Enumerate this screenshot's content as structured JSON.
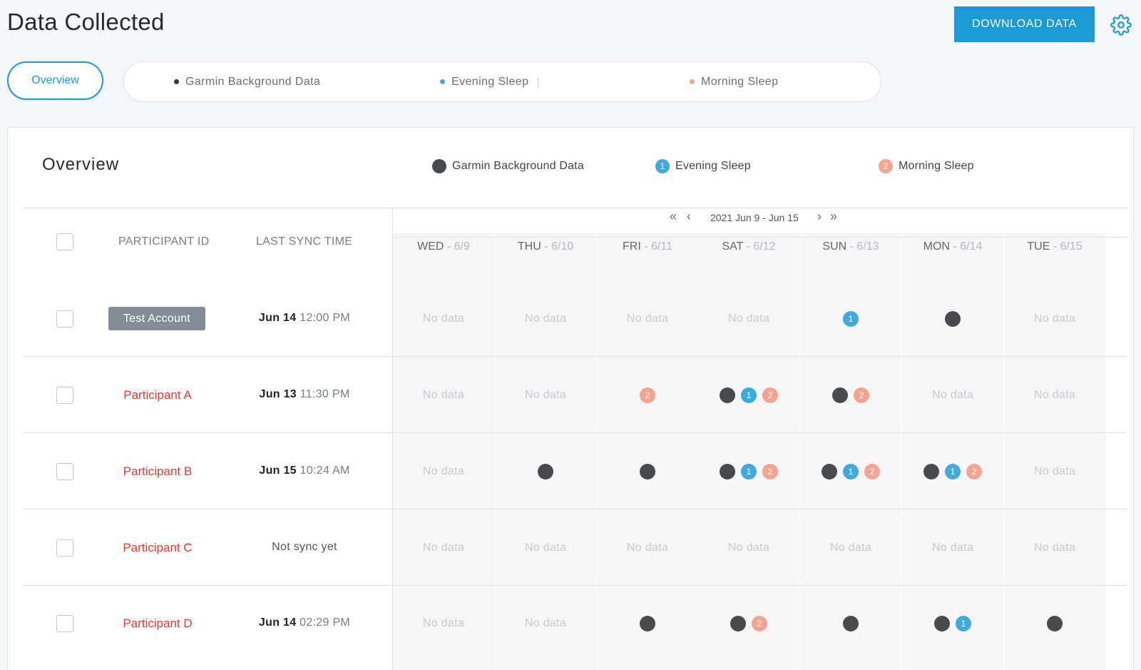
{
  "page": {
    "title": "Data Collected",
    "download_label": "DOWNLOAD DATA",
    "settings_icon": "gear-icon"
  },
  "filters": {
    "overview_label": "Overview",
    "tabs": [
      {
        "label": "Garmin Background Data",
        "color": "#3a3a3a"
      },
      {
        "label": "Evening Sleep",
        "color": "#3fa9e0"
      },
      {
        "label": "Morning Sleep",
        "color": "#f4a48f"
      }
    ]
  },
  "overview": {
    "title": "Overview",
    "legend": [
      {
        "label": "Garmin Background Data",
        "type": "garmin",
        "badge": ""
      },
      {
        "label": "Evening Sleep",
        "type": "evening",
        "badge": "1"
      },
      {
        "label": "Morning Sleep",
        "type": "morning",
        "badge": "2"
      }
    ],
    "colors": {
      "garmin": "#494a4d",
      "evening": "#3fa9e0",
      "morning": "#f4a48f",
      "accent": "#1b9ad6",
      "participant": "#e8382f"
    },
    "date_range": "2021 Jun 9 - Jun 15",
    "columns": {
      "participant": "PARTICIPANT ID",
      "sync": "LAST SYNC TIME"
    },
    "days": [
      {
        "name": "WED",
        "date": "6/9"
      },
      {
        "name": "THU",
        "date": "6/10"
      },
      {
        "name": "FRI",
        "date": "6/11"
      },
      {
        "name": "SAT",
        "date": "6/12"
      },
      {
        "name": "SUN",
        "date": "6/13"
      },
      {
        "name": "MON",
        "date": "6/14"
      },
      {
        "name": "TUE",
        "date": "6/15"
      }
    ],
    "no_data_label": "No data",
    "evening_badge": "1",
    "morning_badge": "2",
    "rows": [
      {
        "id": "Test Account",
        "is_test": true,
        "sync_date": "Jun 14",
        "sync_time": "12:00 PM",
        "sync_none": "",
        "cells": [
          [],
          [],
          [],
          [],
          [
            "evening"
          ],
          [
            "garmin"
          ],
          []
        ]
      },
      {
        "id": "Participant A",
        "is_test": false,
        "sync_date": "Jun 13",
        "sync_time": "11:30 PM",
        "sync_none": "",
        "cells": [
          [],
          [],
          [
            "morning"
          ],
          [
            "garmin",
            "evening",
            "morning"
          ],
          [
            "garmin",
            "morning"
          ],
          [],
          []
        ]
      },
      {
        "id": "Participant B",
        "is_test": false,
        "sync_date": "Jun 15",
        "sync_time": "10:24 AM",
        "sync_none": "",
        "cells": [
          [],
          [
            "garmin"
          ],
          [
            "garmin"
          ],
          [
            "garmin",
            "evening",
            "morning"
          ],
          [
            "garmin",
            "evening",
            "morning"
          ],
          [
            "garmin",
            "evening",
            "morning"
          ],
          []
        ]
      },
      {
        "id": "Participant C",
        "is_test": false,
        "sync_date": "",
        "sync_time": "",
        "sync_none": "Not sync yet",
        "cells": [
          [],
          [],
          [],
          [],
          [],
          [],
          []
        ]
      },
      {
        "id": "Participant D",
        "is_test": false,
        "sync_date": "Jun 14",
        "sync_time": "02:29 PM",
        "sync_none": "",
        "cells": [
          [],
          [],
          [
            "garmin"
          ],
          [
            "garmin",
            "morning"
          ],
          [
            "garmin"
          ],
          [
            "garmin",
            "evening"
          ],
          [
            "garmin"
          ]
        ]
      }
    ]
  }
}
